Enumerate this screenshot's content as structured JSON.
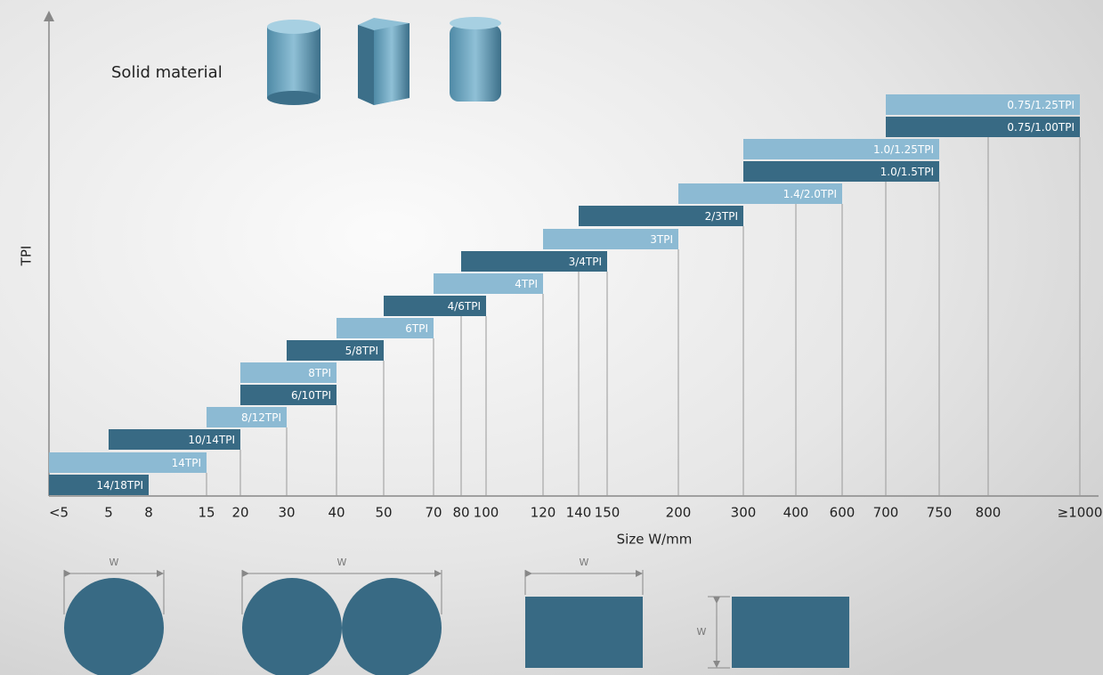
{
  "title": "Solid material",
  "y_axis_label": "TPI",
  "x_axis_label": "Size W/mm",
  "x_ticks": [
    "<5",
    "5",
    "8",
    "15",
    "20",
    "30",
    "40",
    "50",
    "70",
    "80",
    "100",
    "120",
    "140",
    "150",
    "200",
    "300",
    "400",
    "600",
    "700",
    "750",
    "800",
    "≥1000"
  ],
  "bars": [
    {
      "label": "14/18TPI",
      "shade": "dark"
    },
    {
      "label": "14TPI",
      "shade": "light"
    },
    {
      "label": "10/14TPI",
      "shade": "dark"
    },
    {
      "label": "8/12TPI",
      "shade": "light"
    },
    {
      "label": "6/10TPI",
      "shade": "dark"
    },
    {
      "label": "8TPI",
      "shade": "light"
    },
    {
      "label": "5/8TPI",
      "shade": "dark"
    },
    {
      "label": "6TPI",
      "shade": "light"
    },
    {
      "label": "4/6TPI",
      "shade": "dark"
    },
    {
      "label": "4TPI",
      "shade": "light"
    },
    {
      "label": "3/4TPI",
      "shade": "dark"
    },
    {
      "label": "3TPI",
      "shade": "light"
    },
    {
      "label": "2/3TPI",
      "shade": "dark"
    },
    {
      "label": "1.4/2.0TPI",
      "shade": "light"
    },
    {
      "label": "1.0/1.5TPI",
      "shade": "dark"
    },
    {
      "label": "1.0/1.25TPI",
      "shade": "light"
    },
    {
      "label": "0.75/1.00TPI",
      "shade": "dark"
    },
    {
      "label": "0.75/1.25TPI",
      "shade": "light"
    }
  ],
  "dimension_labels": [
    "W",
    "W",
    "W",
    "W"
  ]
}
